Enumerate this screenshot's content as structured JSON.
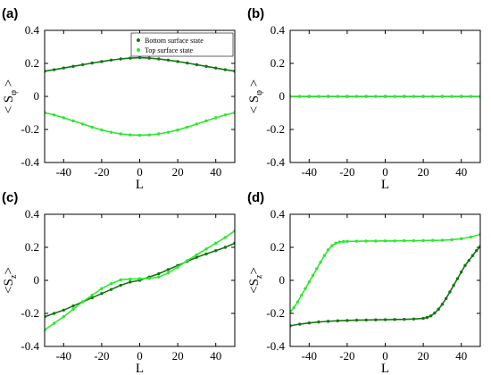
{
  "colors": {
    "dark": "#137613",
    "light": "#2ee82e",
    "axis": "#000000"
  },
  "chart_data": [
    {
      "type": "scatter",
      "panel_tag": "(a)",
      "xlabel": "L",
      "ylabel": {
        "open": "< S",
        "sub": "φ",
        "close": " >"
      },
      "xlim": [
        -50,
        50
      ],
      "ylim": [
        -0.4,
        0.4
      ],
      "xticks": [
        -40,
        -20,
        0,
        20,
        40
      ],
      "xtick_labels": [
        "-40",
        "-20",
        "0",
        "20",
        "40"
      ],
      "yticks": [
        -0.4,
        -0.2,
        0,
        0.2,
        0.4
      ],
      "ytick_labels": [
        "-0.4",
        "-0.2",
        "0",
        "0.2",
        "0.4"
      ],
      "legend": {
        "placement": "top-right",
        "entries": [
          "Bottom surface state",
          "Top surface state"
        ]
      },
      "series": [
        {
          "name": "Bottom surface state",
          "color_key": "dark",
          "x": [
            -50,
            -45,
            -40,
            -35,
            -30,
            -25,
            -20,
            -15,
            -10,
            -5,
            0,
            5,
            10,
            15,
            20,
            25,
            30,
            35,
            40,
            45,
            50
          ],
          "y": [
            0.153,
            0.162,
            0.172,
            0.182,
            0.192,
            0.202,
            0.211,
            0.22,
            0.227,
            0.232,
            0.235,
            0.232,
            0.227,
            0.22,
            0.211,
            0.202,
            0.192,
            0.182,
            0.172,
            0.162,
            0.153
          ]
        },
        {
          "name": "Top surface state",
          "color_key": "light",
          "x": [
            -50,
            -45,
            -40,
            -35,
            -30,
            -25,
            -20,
            -15,
            -10,
            -5,
            0,
            5,
            10,
            15,
            20,
            25,
            30,
            35,
            40,
            45,
            50
          ],
          "y": [
            -0.098,
            -0.112,
            -0.129,
            -0.148,
            -0.167,
            -0.186,
            -0.203,
            -0.217,
            -0.227,
            -0.233,
            -0.235,
            -0.233,
            -0.227,
            -0.217,
            -0.203,
            -0.186,
            -0.167,
            -0.148,
            -0.129,
            -0.112,
            -0.098
          ]
        }
      ]
    },
    {
      "type": "scatter",
      "panel_tag": "(b)",
      "xlabel": "L",
      "ylabel": {
        "open": "< S",
        "sub": "φ",
        "close": " >"
      },
      "xlim": [
        -50,
        50
      ],
      "ylim": [
        -0.4,
        0.4
      ],
      "xticks": [
        -40,
        -20,
        0,
        20,
        40
      ],
      "xtick_labels": [
        "-40",
        "-20",
        "0",
        "20",
        "40"
      ],
      "yticks": [
        -0.4,
        -0.2,
        0,
        0.2,
        0.4
      ],
      "ytick_labels": [
        "-0.4",
        "-0.2",
        "0",
        "0.2",
        "0.4"
      ],
      "series": [
        {
          "color_key": "dark",
          "x": [
            -50,
            -40,
            -30,
            -20,
            -10,
            0,
            10,
            20,
            30,
            40,
            50
          ],
          "y": [
            0,
            0,
            0,
            0,
            0,
            0,
            0,
            0,
            0,
            0,
            0
          ]
        },
        {
          "color_key": "light",
          "x": [
            -50,
            -45,
            -40,
            -35,
            -30,
            -25,
            -20,
            -15,
            -10,
            -5,
            0,
            5,
            10,
            15,
            20,
            25,
            30,
            35,
            40,
            45,
            50
          ],
          "y": [
            0,
            0,
            0,
            0,
            0,
            0,
            0,
            0,
            0,
            0,
            0,
            0,
            0,
            0,
            0,
            0,
            0,
            0,
            0,
            0,
            0
          ]
        }
      ]
    },
    {
      "type": "scatter",
      "panel_tag": "(c)",
      "xlabel": "L",
      "ylabel": {
        "open": "<S",
        "sub": "z",
        "close": ">"
      },
      "xlim": [
        -50,
        50
      ],
      "ylim": [
        -0.4,
        0.4
      ],
      "xticks": [
        -40,
        -20,
        0,
        20,
        40
      ],
      "xtick_labels": [
        "-40",
        "-20",
        "0",
        "20",
        "40"
      ],
      "yticks": [
        -0.4,
        -0.2,
        0,
        0.2,
        0.4
      ],
      "ytick_labels": [
        "-0.4",
        "-0.2",
        "0",
        "0.2",
        "0.4"
      ],
      "series": [
        {
          "color_key": "dark",
          "x": [
            -50,
            -45,
            -40,
            -35,
            -30,
            -25,
            -20,
            -15,
            -10,
            -5,
            0,
            5,
            10,
            15,
            20,
            25,
            30,
            35,
            40,
            45,
            50
          ],
          "y": [
            -0.22,
            -0.2,
            -0.18,
            -0.155,
            -0.13,
            -0.105,
            -0.08,
            -0.055,
            -0.03,
            -0.01,
            0.0,
            0.02,
            0.04,
            0.065,
            0.09,
            0.115,
            0.14,
            0.16,
            0.18,
            0.2,
            0.225
          ]
        },
        {
          "color_key": "light",
          "x": [
            -50,
            -45,
            -40,
            -35,
            -30,
            -25,
            -20,
            -15,
            -10,
            -5,
            0,
            5,
            10,
            15,
            20,
            25,
            30,
            35,
            40,
            45,
            50
          ],
          "y": [
            -0.3,
            -0.26,
            -0.22,
            -0.175,
            -0.13,
            -0.09,
            -0.05,
            -0.02,
            0.003,
            0.008,
            0.01,
            0.012,
            0.02,
            0.045,
            0.08,
            0.12,
            0.155,
            0.19,
            0.225,
            0.26,
            0.3
          ]
        }
      ]
    },
    {
      "type": "scatter",
      "panel_tag": "(d)",
      "xlabel": "L",
      "ylabel": {
        "open": "<S",
        "sub": "z",
        "close": ">"
      },
      "xlim": [
        -50,
        50
      ],
      "ylim": [
        -0.4,
        0.4
      ],
      "xticks": [
        -40,
        -20,
        0,
        20,
        40
      ],
      "xtick_labels": [
        "-40",
        "-20",
        "0",
        "20",
        "40"
      ],
      "yticks": [
        -0.4,
        -0.2,
        0,
        0.2,
        0.4
      ],
      "ytick_labels": [
        "-0.4",
        "-0.2",
        "0",
        "0.2",
        "0.4"
      ],
      "series": [
        {
          "color_key": "dark",
          "x": [
            -50,
            -45,
            -40,
            -35,
            -30,
            -25,
            -20,
            -15,
            -10,
            -5,
            0,
            5,
            10,
            15,
            20,
            22,
            24,
            26,
            28,
            30,
            32,
            34,
            36,
            38,
            40,
            42,
            44,
            46,
            48,
            50
          ],
          "y": [
            -0.275,
            -0.265,
            -0.258,
            -0.252,
            -0.248,
            -0.245,
            -0.243,
            -0.241,
            -0.24,
            -0.239,
            -0.238,
            -0.237,
            -0.236,
            -0.234,
            -0.23,
            -0.225,
            -0.215,
            -0.198,
            -0.175,
            -0.145,
            -0.11,
            -0.07,
            -0.03,
            0.01,
            0.05,
            0.09,
            0.12,
            0.15,
            0.18,
            0.205
          ]
        },
        {
          "color_key": "light",
          "x": [
            -50,
            -48,
            -46,
            -44,
            -42,
            -40,
            -38,
            -36,
            -34,
            -32,
            -30,
            -28,
            -26,
            -24,
            -22,
            -20,
            -15,
            -10,
            -5,
            0,
            5,
            10,
            15,
            20,
            25,
            30,
            35,
            40,
            45,
            50
          ],
          "y": [
            -0.19,
            -0.165,
            -0.13,
            -0.09,
            -0.05,
            -0.01,
            0.03,
            0.07,
            0.11,
            0.15,
            0.185,
            0.21,
            0.225,
            0.232,
            0.235,
            0.236,
            0.237,
            0.238,
            0.238,
            0.239,
            0.239,
            0.24,
            0.24,
            0.241,
            0.242,
            0.243,
            0.246,
            0.252,
            0.262,
            0.278
          ]
        }
      ]
    }
  ]
}
